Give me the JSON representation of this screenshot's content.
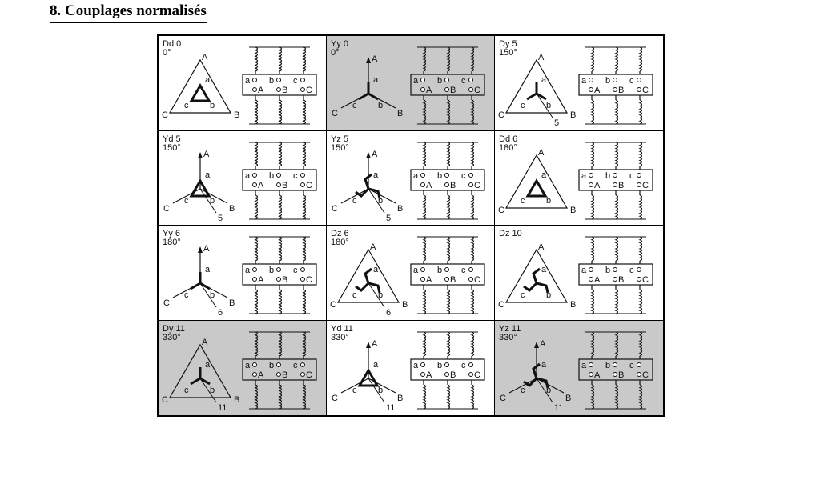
{
  "title": "8. Couplages normalisés",
  "cells": [
    {
      "code": "Dd 0",
      "angle": "0°",
      "shaded": false,
      "prim": "delta",
      "sec": "delta",
      "arrow": ""
    },
    {
      "code": "Yy 0",
      "angle": "0°",
      "shaded": true,
      "prim": "star",
      "sec": "star",
      "arrow": ""
    },
    {
      "code": "Dy 5",
      "angle": "150°",
      "shaded": false,
      "prim": "delta",
      "sec": "star",
      "arrow": "5"
    },
    {
      "code": "Yd 5",
      "angle": "150°",
      "shaded": false,
      "prim": "star",
      "sec": "delta",
      "arrow": "5"
    },
    {
      "code": "Yz 5",
      "angle": "150°",
      "shaded": false,
      "prim": "star",
      "sec": "zigzag",
      "arrow": "5"
    },
    {
      "code": "Dd 6",
      "angle": "180°",
      "shaded": false,
      "prim": "delta",
      "sec": "delta",
      "arrow": ""
    },
    {
      "code": "Yy 6",
      "angle": "180°",
      "shaded": false,
      "prim": "star",
      "sec": "star",
      "arrow": "6"
    },
    {
      "code": "Dz 6",
      "angle": "180°",
      "shaded": false,
      "prim": "delta",
      "sec": "zigzag",
      "arrow": "6"
    },
    {
      "code": "Dz 10",
      "angle": "",
      "shaded": false,
      "prim": "delta",
      "sec": "zigzag",
      "arrow": ""
    },
    {
      "code": "Dy 11",
      "angle": "330°",
      "shaded": true,
      "prim": "delta",
      "sec": "star",
      "arrow": "11"
    },
    {
      "code": "Yd 11",
      "angle": "330°",
      "shaded": false,
      "prim": "star",
      "sec": "delta",
      "arrow": "11"
    },
    {
      "code": "Yz 11",
      "angle": "330°",
      "shaded": true,
      "prim": "star",
      "sec": "zigzag",
      "arrow": "11"
    }
  ],
  "labels": {
    "phase_A": "A",
    "phase_B": "B",
    "phase_C": "C",
    "phase_a": "a",
    "phase_b": "b",
    "phase_c": "c"
  }
}
